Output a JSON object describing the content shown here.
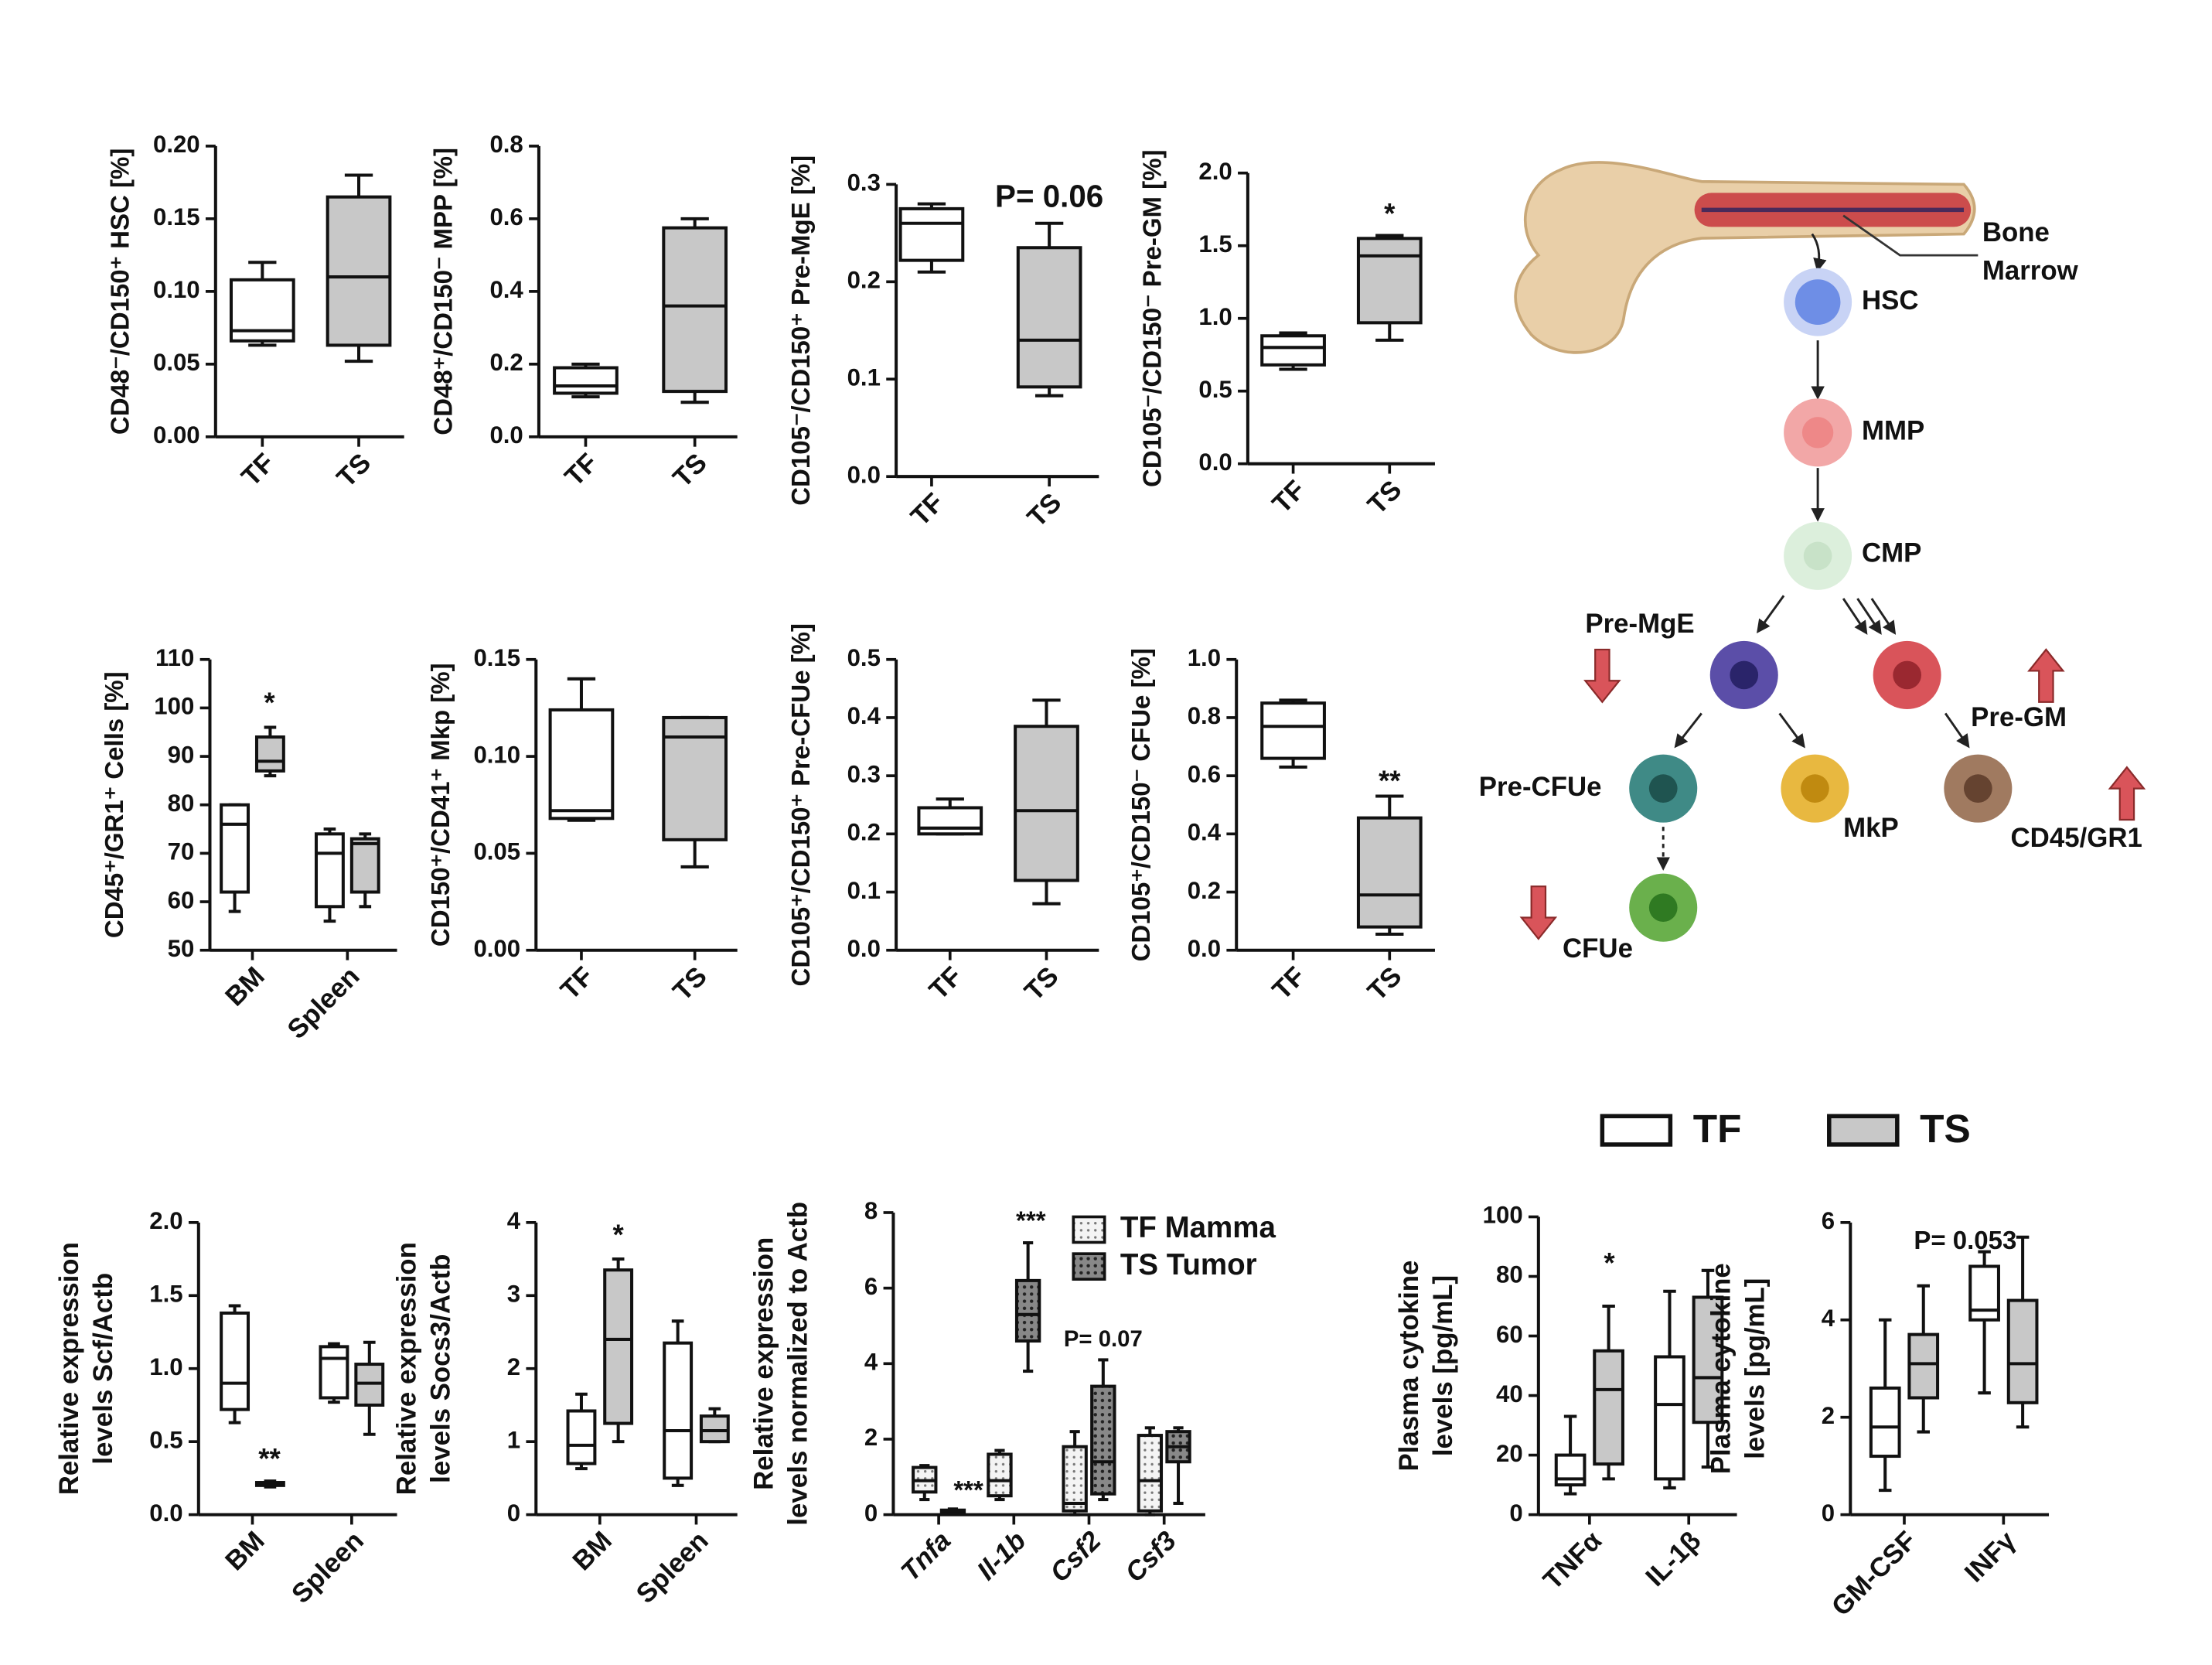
{
  "chart_data": [
    {
      "type": "box",
      "ylabel": "CD48⁻/CD150⁺ HSC [%]",
      "categories": [
        "TF",
        "TS"
      ],
      "colors": [
        "#ffffff",
        "#c8c8c8"
      ],
      "values": [
        {
          "min": 0.063,
          "q1": 0.066,
          "median": 0.073,
          "q3": 0.108,
          "max": 0.12
        },
        {
          "min": 0.052,
          "q1": 0.063,
          "median": 0.11,
          "q3": 0.165,
          "max": 0.18
        }
      ],
      "ylim": [
        0,
        0.2
      ],
      "yticks": [
        {
          "value": 0,
          "label": "0.00"
        },
        0.05,
        {
          "value": 0.1,
          "label": "0.10"
        },
        0.15,
        {
          "value": 0.2,
          "label": "0.20"
        }
      ],
      "annotations": []
    },
    {
      "type": "box",
      "ylabel": "CD48⁺/CD150⁻ MPP [%]",
      "categories": [
        "TF",
        "TS"
      ],
      "colors": [
        "#ffffff",
        "#c8c8c8"
      ],
      "values": [
        {
          "min": 0.11,
          "q1": 0.12,
          "median": 0.14,
          "q3": 0.19,
          "max": 0.2
        },
        {
          "min": 0.095,
          "q1": 0.125,
          "median": 0.36,
          "q3": 0.575,
          "max": 0.6
        }
      ],
      "ylim": [
        0,
        0.8
      ],
      "yticks": [
        {
          "value": 0,
          "label": "0.0"
        },
        0.2,
        0.4,
        0.6,
        0.8
      ],
      "annotations": []
    },
    {
      "type": "box",
      "ylabel": "CD105⁻/CD150⁺ Pre-MgE [%]",
      "categories": [
        "TF",
        "TS"
      ],
      "colors": [
        "#ffffff",
        "#c8c8c8"
      ],
      "values": [
        {
          "min": 0.21,
          "q1": 0.222,
          "median": 0.26,
          "q3": 0.275,
          "max": 0.28
        },
        {
          "min": 0.083,
          "q1": 0.092,
          "median": 0.14,
          "q3": 0.235,
          "max": 0.26
        }
      ],
      "ylim": [
        0,
        0.3
      ],
      "yticks": [
        {
          "value": 0,
          "label": "0.0"
        },
        0.1,
        0.2,
        0.3
      ],
      "annotations": [
        {
          "text": "P= 0.06",
          "color": "#e03020"
        }
      ]
    },
    {
      "type": "box",
      "ylabel": "CD105⁻/CD150⁻ Pre-GM [%]",
      "categories": [
        "TF",
        "TS"
      ],
      "colors": [
        "#ffffff",
        "#c8c8c8"
      ],
      "values": [
        {
          "min": 0.65,
          "q1": 0.68,
          "median": 0.8,
          "q3": 0.88,
          "max": 0.9
        },
        {
          "min": 0.85,
          "q1": 0.97,
          "median": 1.43,
          "q3": 1.55,
          "max": 1.57
        }
      ],
      "ylim": [
        0,
        2
      ],
      "yticks": [
        {
          "value": 0,
          "label": "0.0"
        },
        0.5,
        {
          "value": 1,
          "label": "1.0"
        },
        1.5,
        {
          "value": 2,
          "label": "2.0"
        }
      ],
      "annotations": [
        {
          "text": "*",
          "color": "#e03020"
        }
      ]
    },
    {
      "type": "box",
      "ylabel": "CD45⁺/GR1⁺ Cells [%]",
      "categories": [
        "BM",
        "Spleen"
      ],
      "series": [
        {
          "color": "#ffffff",
          "values": [
            {
              "min": 58,
              "q1": 62,
              "median": 76,
              "q3": 80,
              "max": 80
            },
            {
              "min": 56,
              "q1": 59,
              "median": 70,
              "q3": 74,
              "max": 75
            }
          ]
        },
        {
          "color": "#c8c8c8",
          "values": [
            {
              "min": 86,
              "q1": 87,
              "median": 89,
              "q3": 94,
              "max": 96
            },
            {
              "min": 59,
              "q1": 62,
              "median": 72,
              "q3": 73,
              "max": 74
            }
          ]
        }
      ],
      "ylim": [
        50,
        110
      ],
      "yticks": [
        50,
        60,
        70,
        80,
        90,
        100,
        110
      ],
      "annotations": [
        {
          "text": "*",
          "color": "#e03020"
        }
      ]
    },
    {
      "type": "box",
      "ylabel": "CD150⁺/CD41⁺ Mkp [%]",
      "categories": [
        "TF",
        "TS"
      ],
      "colors": [
        "#ffffff",
        "#c8c8c8"
      ],
      "values": [
        {
          "min": 0.067,
          "q1": 0.068,
          "median": 0.072,
          "q3": 0.124,
          "max": 0.14
        },
        {
          "min": 0.043,
          "q1": 0.057,
          "median": 0.11,
          "q3": 0.12,
          "max": 0.12
        }
      ],
      "ylim": [
        0,
        0.15
      ],
      "yticks": [
        {
          "value": 0,
          "label": "0.00"
        },
        0.05,
        {
          "value": 0.1,
          "label": "0.10"
        },
        0.15
      ],
      "annotations": []
    },
    {
      "type": "box",
      "ylabel": "CD105⁺/CD150⁺ Pre-CFUe [%]",
      "categories": [
        "TF",
        "TS"
      ],
      "colors": [
        "#ffffff",
        "#c8c8c8"
      ],
      "values": [
        {
          "min": 0.2,
          "q1": 0.2,
          "median": 0.21,
          "q3": 0.245,
          "max": 0.26
        },
        {
          "min": 0.08,
          "q1": 0.12,
          "median": 0.24,
          "q3": 0.385,
          "max": 0.43
        }
      ],
      "ylim": [
        0,
        0.5
      ],
      "yticks": [
        {
          "value": 0,
          "label": "0.0"
        },
        0.1,
        0.2,
        0.3,
        0.4,
        0.5
      ],
      "annotations": []
    },
    {
      "type": "box",
      "ylabel": "CD105⁺/CD150⁻ CFUe [%]",
      "categories": [
        "TF",
        "TS"
      ],
      "colors": [
        "#ffffff",
        "#c8c8c8"
      ],
      "values": [
        {
          "min": 0.63,
          "q1": 0.66,
          "median": 0.77,
          "q3": 0.85,
          "max": 0.86
        },
        {
          "min": 0.055,
          "q1": 0.08,
          "median": 0.19,
          "q3": 0.455,
          "max": 0.53
        }
      ],
      "ylim": [
        0,
        1
      ],
      "yticks": [
        {
          "value": 0,
          "label": "0.0"
        },
        0.2,
        0.4,
        0.6,
        0.8,
        {
          "value": 1,
          "label": "1.0"
        }
      ],
      "annotations": [
        {
          "text": "**",
          "color": "#e03020"
        }
      ]
    },
    {
      "type": "box",
      "ylabel": [
        "Relative expression",
        "levels Scf/Actb"
      ],
      "categories": [
        "BM",
        "Spleen"
      ],
      "series": [
        {
          "color": "#ffffff",
          "values": [
            {
              "min": 0.63,
              "q1": 0.72,
              "median": 0.9,
              "q3": 1.38,
              "max": 1.43
            },
            {
              "min": 0.77,
              "q1": 0.8,
              "median": 1.07,
              "q3": 1.15,
              "max": 1.17
            }
          ]
        },
        {
          "color": "#c8c8c8",
          "values": [
            {
              "min": 0.19,
              "q1": 0.2,
              "median": 0.21,
              "q3": 0.22,
              "max": 0.23
            },
            {
              "min": 0.55,
              "q1": 0.75,
              "median": 0.9,
              "q3": 1.03,
              "max": 1.18
            }
          ]
        }
      ],
      "ylim": [
        0,
        2
      ],
      "yticks": [
        {
          "value": 0,
          "label": "0.0"
        },
        0.5,
        {
          "value": 1,
          "label": "1.0"
        },
        1.5,
        {
          "value": 2,
          "label": "2.0"
        }
      ],
      "annotations": [
        {
          "text": "**",
          "color": "#e03020"
        }
      ]
    },
    {
      "type": "box",
      "ylabel": [
        "Relative expression",
        "levels Socs3/Actb"
      ],
      "categories": [
        "BM",
        "Spleen"
      ],
      "series": [
        {
          "color": "#ffffff",
          "values": [
            {
              "min": 0.63,
              "q1": 0.7,
              "median": 0.95,
              "q3": 1.42,
              "max": 1.65
            },
            {
              "min": 0.4,
              "q1": 0.5,
              "median": 1.15,
              "q3": 2.35,
              "max": 2.65
            }
          ]
        },
        {
          "color": "#c8c8c8",
          "values": [
            {
              "min": 1.0,
              "q1": 1.25,
              "median": 2.4,
              "q3": 3.35,
              "max": 3.5
            },
            {
              "min": 1.0,
              "q1": 1.0,
              "median": 1.15,
              "q3": 1.35,
              "max": 1.45
            }
          ]
        }
      ],
      "ylim": [
        0,
        4
      ],
      "yticks": [
        0,
        1,
        2,
        3,
        4
      ],
      "annotations": [
        {
          "text": "*",
          "color": "#e03020"
        }
      ]
    },
    {
      "type": "box",
      "ylabel": [
        "Relative expression",
        "levels normalized to Actb"
      ],
      "categories": [
        "Tnfa",
        "Il-1b",
        "Csf2",
        "Csf3"
      ],
      "category_style": "italic",
      "series": [
        {
          "name": "TF Mamma",
          "color": "#eeeeee",
          "pattern": "dotted",
          "values": [
            {
              "min": 0.4,
              "q1": 0.6,
              "median": 0.9,
              "q3": 1.25,
              "max": 1.3
            },
            {
              "min": 0.4,
              "q1": 0.5,
              "median": 0.9,
              "q3": 1.6,
              "max": 1.7
            },
            {
              "min": 0,
              "q1": 0.1,
              "median": 0.3,
              "q3": 1.8,
              "max": 2.2
            },
            {
              "min": 0,
              "q1": 0.1,
              "median": 0.9,
              "q3": 2.1,
              "max": 2.3
            }
          ]
        },
        {
          "name": "TS Tumor",
          "color": "#777777",
          "pattern": "hatched",
          "values": [
            {
              "min": 0.05,
              "q1": 0.07,
              "median": 0.1,
              "q3": 0.12,
              "max": 0.15
            },
            {
              "min": 3.8,
              "q1": 4.6,
              "median": 5.3,
              "q3": 6.2,
              "max": 7.2
            },
            {
              "min": 0.4,
              "q1": 0.55,
              "median": 1.4,
              "q3": 3.4,
              "max": 4.1
            },
            {
              "min": 0.3,
              "q1": 1.4,
              "median": 1.8,
              "q3": 2.2,
              "max": 2.3
            }
          ]
        }
      ],
      "ylim": [
        0,
        8
      ],
      "yticks": [
        0,
        2,
        4,
        6,
        8
      ],
      "annotations": [
        {
          "text": "***",
          "color": "#e03020"
        },
        {
          "text": "***",
          "color": "#e03020"
        },
        {
          "text": "P= 0.07",
          "color": "#e03020"
        }
      ]
    },
    {
      "type": "box",
      "ylabel": [
        "Plasma cytokine",
        "levels [pg/mL]"
      ],
      "categories": [
        "TNFα",
        "IL-1β"
      ],
      "series": [
        {
          "color": "#ffffff",
          "values": [
            {
              "min": 7,
              "q1": 10,
              "median": 12,
              "q3": 20,
              "max": 33
            },
            {
              "min": 9,
              "q1": 12,
              "median": 37,
              "q3": 53,
              "max": 75
            }
          ]
        },
        {
          "color": "#c8c8c8",
          "values": [
            {
              "min": 12,
              "q1": 17,
              "median": 42,
              "q3": 55,
              "max": 70
            },
            {
              "min": 16,
              "q1": 31,
              "median": 46,
              "q3": 73,
              "max": 82
            }
          ]
        }
      ],
      "ylim": [
        0,
        100
      ],
      "yticks": [
        0,
        20,
        40,
        60,
        80,
        100
      ],
      "annotations": [
        {
          "text": "*",
          "color": "#e03020"
        }
      ]
    },
    {
      "type": "box",
      "ylabel": [
        "Plasma cytokine",
        "levels [pg/mL]"
      ],
      "categories": [
        "GM-CSF",
        "INFγ"
      ],
      "series": [
        {
          "color": "#ffffff",
          "values": [
            {
              "min": 0.5,
              "q1": 1.2,
              "median": 1.8,
              "q3": 2.6,
              "max": 4.0
            },
            {
              "min": 2.5,
              "q1": 4.0,
              "median": 4.2,
              "q3": 5.1,
              "max": 5.4
            }
          ]
        },
        {
          "color": "#c8c8c8",
          "values": [
            {
              "min": 1.7,
              "q1": 2.4,
              "median": 3.1,
              "q3": 3.7,
              "max": 4.7
            },
            {
              "min": 1.8,
              "q1": 2.3,
              "median": 3.1,
              "q3": 4.4,
              "max": 5.7
            }
          ]
        }
      ],
      "ylim": [
        0,
        6
      ],
      "yticks": [
        0,
        2,
        4,
        6
      ],
      "annotations": [
        {
          "text": "P= 0.053",
          "color": "#111111"
        }
      ]
    }
  ],
  "legend": [
    {
      "name": "TF",
      "color": "#ffffff"
    },
    {
      "name": "TS",
      "color": "#c8c8c8"
    }
  ],
  "diagram": {
    "bone_label": [
      "Bone",
      "Marrow"
    ],
    "nodes": [
      {
        "label": "HSC"
      },
      {
        "label": "MMP"
      },
      {
        "label": "CMP"
      },
      {
        "label": "Pre-MgE"
      },
      {
        "label": "Pre-GM"
      },
      {
        "label": "Pre-CFUe"
      },
      {
        "label": "MkP"
      },
      {
        "label": "CD45/GR1"
      },
      {
        "label": "CFUe"
      }
    ]
  }
}
